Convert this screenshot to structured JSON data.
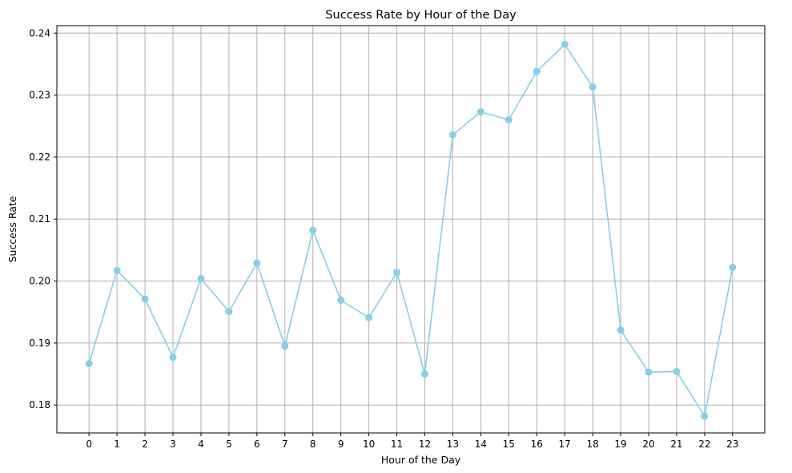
{
  "chart_data": {
    "type": "line",
    "title": "Success Rate by Hour of the Day",
    "xlabel": "Hour of the Day",
    "ylabel": "Success Rate",
    "x": [
      0,
      1,
      2,
      3,
      4,
      5,
      6,
      7,
      8,
      9,
      10,
      11,
      12,
      13,
      14,
      15,
      16,
      17,
      18,
      19,
      20,
      21,
      22,
      23
    ],
    "series": [
      {
        "values": [
          0.1867,
          0.2017,
          0.1971,
          0.1877,
          0.2004,
          0.1951,
          0.2029,
          0.1895,
          0.2082,
          0.1969,
          0.1941,
          0.2014,
          0.185,
          0.2236,
          0.2273,
          0.226,
          0.2338,
          0.2382,
          0.2313,
          0.1921,
          0.1853,
          0.1854,
          0.1782,
          0.2022
        ],
        "color": "#87ceeb",
        "marker": "circle"
      }
    ],
    "xlim": [
      -1.15,
      24.15
    ],
    "ylim": [
      0.1755,
      0.2412
    ],
    "xticks": [
      "0",
      "1",
      "2",
      "3",
      "4",
      "5",
      "6",
      "7",
      "8",
      "9",
      "10",
      "11",
      "12",
      "13",
      "14",
      "15",
      "16",
      "17",
      "18",
      "19",
      "20",
      "21",
      "22",
      "23"
    ],
    "yticks": [
      "0.18",
      "0.19",
      "0.20",
      "0.21",
      "0.22",
      "0.23",
      "0.24"
    ],
    "grid": true
  }
}
